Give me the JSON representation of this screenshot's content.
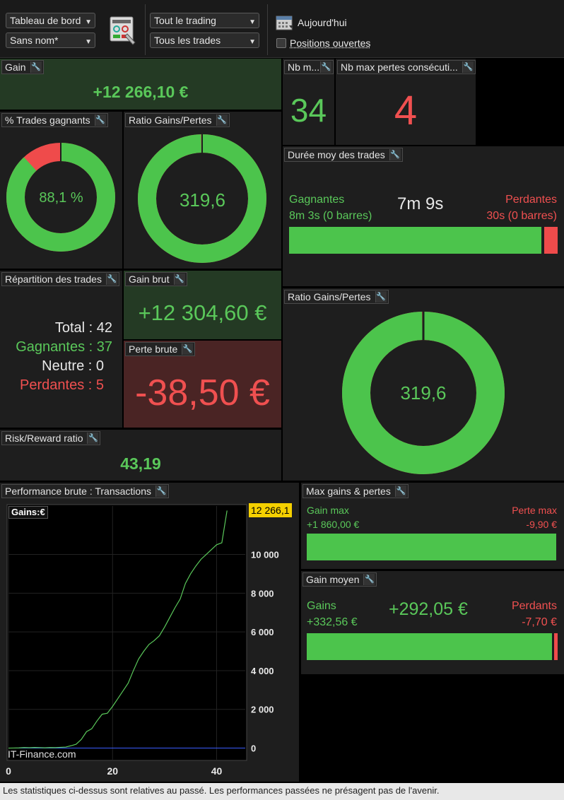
{
  "toolbar": {
    "select_dashboard": "Tableau de bord",
    "select_name": "Sans nom*",
    "select_trading": "Tout le trading",
    "select_trades": "Tous les trades",
    "date_label": "Aujourd'hui",
    "open_positions_label": "Positions ouvertes"
  },
  "gain": {
    "title": "Gain",
    "value": "+12 266,10 €"
  },
  "nb_m": {
    "title": "Nb m...",
    "value": "34"
  },
  "nb_max_losses": {
    "title": "Nb max pertes consécuti...",
    "value": "4"
  },
  "pct_winning": {
    "title": "% Trades gagnants",
    "value": "88,1 %",
    "fraction": 0.881
  },
  "ratio_small": {
    "title": "Ratio Gains/Pertes",
    "value": "319,6",
    "fraction": 0.9969
  },
  "avg_duration": {
    "title": "Durée moy des trades",
    "win_label": "Gagnantes",
    "win_value": "8m 3s (0 barres)",
    "center_value": "7m 9s",
    "loss_label": "Perdantes",
    "loss_value": "30s (0 barres)",
    "win_share": 0.94
  },
  "distribution": {
    "title": "Répartition des trades",
    "total": "Total : 42",
    "winning": "Gagnantes : 37",
    "neutral": "Neutre : 0",
    "losing": "Perdantes : 5"
  },
  "gross_gain": {
    "title": "Gain brut",
    "value": "+12 304,60 €"
  },
  "gross_loss": {
    "title": "Perte brute",
    "value": "-38,50 €"
  },
  "ratio_large": {
    "title": "Ratio Gains/Pertes",
    "value": "319,6",
    "fraction": 0.9969
  },
  "risk_reward": {
    "title": "Risk/Reward ratio",
    "value": "43,19"
  },
  "performance": {
    "title": "Performance brute : Transactions",
    "legend": "Gains:€",
    "current_label": "12 266,1",
    "watermark": "IT-Finance.com"
  },
  "max_gains": {
    "title": "Max gains & pertes",
    "gain_label": "Gain max",
    "gain_value": "+1 860,00 €",
    "loss_label": "Perte max",
    "loss_value": "-9,90 €",
    "gain_share": 0.995
  },
  "avg_gain": {
    "title": "Gain moyen",
    "gains_label": "Gains",
    "gains_value": "+332,56 €",
    "center_value": "+292,05 €",
    "loss_label": "Perdants",
    "loss_value": "-7,70 €",
    "gain_share": 0.977
  },
  "footer": "Les statistiques ci-dessus sont relatives au passé. Les performances passées ne présagent pas de l'avenir.",
  "chart_data": {
    "type": "line",
    "title": "",
    "xlabel": "",
    "ylabel": "Gains:€",
    "xlim": [
      0,
      45.5
    ],
    "ylim": [
      -600,
      12500
    ],
    "x_ticks": [
      0,
      20,
      40
    ],
    "y_ticks": [
      0,
      2000,
      4000,
      6000,
      8000,
      10000
    ],
    "y_tick_labels": [
      "0",
      "2 000",
      "4 000",
      "6 000",
      "8 000",
      "10 000"
    ],
    "x_tick_labels": [
      "0",
      "20",
      "40"
    ],
    "grid": true,
    "series": [
      {
        "x": [
          0,
          1,
          2,
          3,
          4,
          5,
          6,
          7,
          8,
          9,
          10,
          11,
          12,
          13,
          14,
          15,
          16,
          17,
          18,
          19,
          20,
          21,
          22,
          23,
          24,
          25,
          26,
          27,
          28,
          29,
          30,
          31,
          32,
          33,
          34,
          35,
          36,
          37,
          38,
          39,
          40,
          41,
          42
        ],
        "y": [
          0,
          5,
          12,
          30,
          20,
          35,
          28,
          15,
          30,
          25,
          40,
          55,
          120,
          200,
          450,
          850,
          1000,
          1400,
          1750,
          1800,
          2150,
          2550,
          2950,
          3350,
          4000,
          4600,
          5000,
          5350,
          5550,
          5800,
          6250,
          6750,
          7250,
          7700,
          8500,
          9000,
          9400,
          9750,
          10000,
          10250,
          10500,
          10600,
          12266
        ]
      }
    ]
  }
}
